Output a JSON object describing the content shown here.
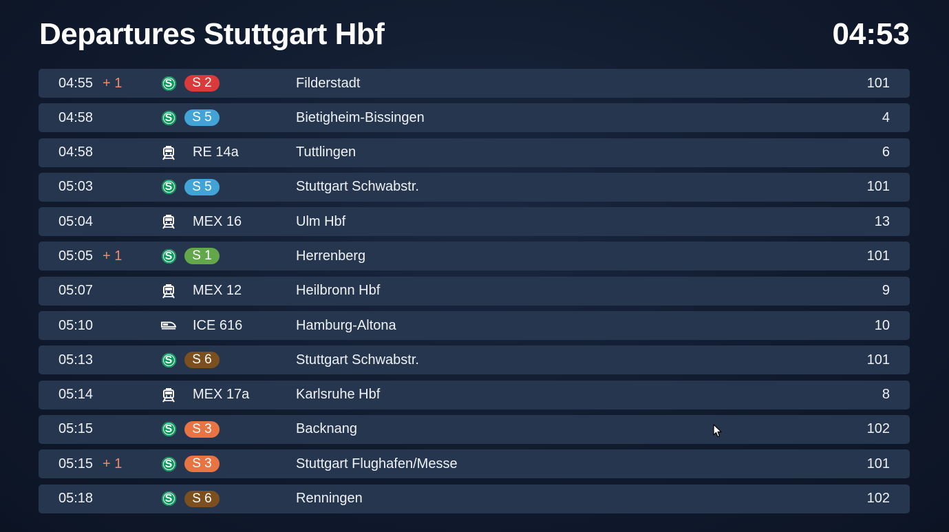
{
  "header": {
    "title": "Departures Stuttgart Hbf",
    "clock": "04:53"
  },
  "colors": {
    "S1": "#62a74a",
    "S2": "#db3a3a",
    "S3": "#e87443",
    "S5": "#42a4d6",
    "S6": "#7c4f1e",
    "sbahn": "#0a9a5b",
    "delay": "#f08a6a"
  },
  "departures": [
    {
      "time": "04:55",
      "delay": "+ 1",
      "product": "sbahn-icon",
      "line": "S 2",
      "line_color": "#db3a3a",
      "destination": "Filderstadt",
      "platform": "101"
    },
    {
      "time": "04:58",
      "delay": "",
      "product": "sbahn-icon",
      "line": "S 5",
      "line_color": "#42a4d6",
      "destination": "Bietigheim-Bissingen",
      "platform": "4"
    },
    {
      "time": "04:58",
      "delay": "",
      "product": "regional-train-icon",
      "line": "RE 14a",
      "line_color": "",
      "destination": "Tuttlingen",
      "platform": "6"
    },
    {
      "time": "05:03",
      "delay": "",
      "product": "sbahn-icon",
      "line": "S 5",
      "line_color": "#42a4d6",
      "destination": "Stuttgart Schwabstr.",
      "platform": "101"
    },
    {
      "time": "05:04",
      "delay": "",
      "product": "regional-train-icon",
      "line": "MEX 16",
      "line_color": "",
      "destination": "Ulm Hbf",
      "platform": "13"
    },
    {
      "time": "05:05",
      "delay": "+ 1",
      "product": "sbahn-icon",
      "line": "S 1",
      "line_color": "#62a74a",
      "destination": "Herrenberg",
      "platform": "101"
    },
    {
      "time": "05:07",
      "delay": "",
      "product": "regional-train-icon",
      "line": "MEX 12",
      "line_color": "",
      "destination": "Heilbronn Hbf",
      "platform": "9"
    },
    {
      "time": "05:10",
      "delay": "",
      "product": "high-speed-train-icon",
      "line": "ICE 616",
      "line_color": "",
      "destination": "Hamburg-Altona",
      "platform": "10"
    },
    {
      "time": "05:13",
      "delay": "",
      "product": "sbahn-icon",
      "line": "S 6",
      "line_color": "#7c4f1e",
      "destination": "Stuttgart Schwabstr.",
      "platform": "101"
    },
    {
      "time": "05:14",
      "delay": "",
      "product": "regional-train-icon",
      "line": "MEX 17a",
      "line_color": "",
      "destination": "Karlsruhe Hbf",
      "platform": "8"
    },
    {
      "time": "05:15",
      "delay": "",
      "product": "sbahn-icon",
      "line": "S 3",
      "line_color": "#e87443",
      "destination": "Backnang",
      "platform": "102"
    },
    {
      "time": "05:15",
      "delay": "+ 1",
      "product": "sbahn-icon",
      "line": "S 3",
      "line_color": "#e87443",
      "destination": "Stuttgart Flughafen/Messe",
      "platform": "101"
    },
    {
      "time": "05:18",
      "delay": "",
      "product": "sbahn-icon",
      "line": "S 6",
      "line_color": "#7c4f1e",
      "destination": "Renningen",
      "platform": "102"
    }
  ],
  "sbahn_symbol": "S"
}
